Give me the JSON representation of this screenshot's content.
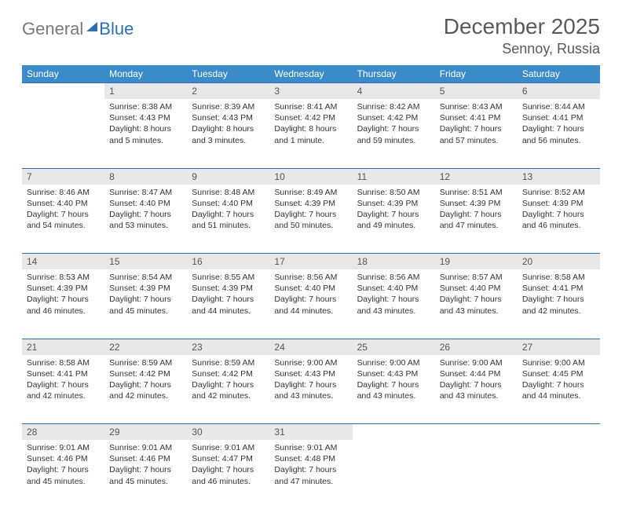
{
  "logo": {
    "text1": "General",
    "text2": "Blue"
  },
  "title": "December 2025",
  "location": "Sennoy, Russia",
  "colors": {
    "header_bg": "#3b8bc9",
    "header_text": "#ffffff",
    "daynum_bg": "#e8e8e8",
    "row_border": "#2c6fb5",
    "logo_gray": "#7a7a7a",
    "logo_blue": "#2c6fb5"
  },
  "weekdays": [
    "Sunday",
    "Monday",
    "Tuesday",
    "Wednesday",
    "Thursday",
    "Friday",
    "Saturday"
  ],
  "weeks": [
    {
      "days": [
        null,
        {
          "n": "1",
          "sr": "Sunrise: 8:38 AM",
          "ss": "Sunset: 4:43 PM",
          "dl": "Daylight: 8 hours and 5 minutes."
        },
        {
          "n": "2",
          "sr": "Sunrise: 8:39 AM",
          "ss": "Sunset: 4:43 PM",
          "dl": "Daylight: 8 hours and 3 minutes."
        },
        {
          "n": "3",
          "sr": "Sunrise: 8:41 AM",
          "ss": "Sunset: 4:42 PM",
          "dl": "Daylight: 8 hours and 1 minute."
        },
        {
          "n": "4",
          "sr": "Sunrise: 8:42 AM",
          "ss": "Sunset: 4:42 PM",
          "dl": "Daylight: 7 hours and 59 minutes."
        },
        {
          "n": "5",
          "sr": "Sunrise: 8:43 AM",
          "ss": "Sunset: 4:41 PM",
          "dl": "Daylight: 7 hours and 57 minutes."
        },
        {
          "n": "6",
          "sr": "Sunrise: 8:44 AM",
          "ss": "Sunset: 4:41 PM",
          "dl": "Daylight: 7 hours and 56 minutes."
        }
      ]
    },
    {
      "days": [
        {
          "n": "7",
          "sr": "Sunrise: 8:46 AM",
          "ss": "Sunset: 4:40 PM",
          "dl": "Daylight: 7 hours and 54 minutes."
        },
        {
          "n": "8",
          "sr": "Sunrise: 8:47 AM",
          "ss": "Sunset: 4:40 PM",
          "dl": "Daylight: 7 hours and 53 minutes."
        },
        {
          "n": "9",
          "sr": "Sunrise: 8:48 AM",
          "ss": "Sunset: 4:40 PM",
          "dl": "Daylight: 7 hours and 51 minutes."
        },
        {
          "n": "10",
          "sr": "Sunrise: 8:49 AM",
          "ss": "Sunset: 4:39 PM",
          "dl": "Daylight: 7 hours and 50 minutes."
        },
        {
          "n": "11",
          "sr": "Sunrise: 8:50 AM",
          "ss": "Sunset: 4:39 PM",
          "dl": "Daylight: 7 hours and 49 minutes."
        },
        {
          "n": "12",
          "sr": "Sunrise: 8:51 AM",
          "ss": "Sunset: 4:39 PM",
          "dl": "Daylight: 7 hours and 47 minutes."
        },
        {
          "n": "13",
          "sr": "Sunrise: 8:52 AM",
          "ss": "Sunset: 4:39 PM",
          "dl": "Daylight: 7 hours and 46 minutes."
        }
      ]
    },
    {
      "days": [
        {
          "n": "14",
          "sr": "Sunrise: 8:53 AM",
          "ss": "Sunset: 4:39 PM",
          "dl": "Daylight: 7 hours and 46 minutes."
        },
        {
          "n": "15",
          "sr": "Sunrise: 8:54 AM",
          "ss": "Sunset: 4:39 PM",
          "dl": "Daylight: 7 hours and 45 minutes."
        },
        {
          "n": "16",
          "sr": "Sunrise: 8:55 AM",
          "ss": "Sunset: 4:39 PM",
          "dl": "Daylight: 7 hours and 44 minutes."
        },
        {
          "n": "17",
          "sr": "Sunrise: 8:56 AM",
          "ss": "Sunset: 4:40 PM",
          "dl": "Daylight: 7 hours and 44 minutes."
        },
        {
          "n": "18",
          "sr": "Sunrise: 8:56 AM",
          "ss": "Sunset: 4:40 PM",
          "dl": "Daylight: 7 hours and 43 minutes."
        },
        {
          "n": "19",
          "sr": "Sunrise: 8:57 AM",
          "ss": "Sunset: 4:40 PM",
          "dl": "Daylight: 7 hours and 43 minutes."
        },
        {
          "n": "20",
          "sr": "Sunrise: 8:58 AM",
          "ss": "Sunset: 4:41 PM",
          "dl": "Daylight: 7 hours and 42 minutes."
        }
      ]
    },
    {
      "days": [
        {
          "n": "21",
          "sr": "Sunrise: 8:58 AM",
          "ss": "Sunset: 4:41 PM",
          "dl": "Daylight: 7 hours and 42 minutes."
        },
        {
          "n": "22",
          "sr": "Sunrise: 8:59 AM",
          "ss": "Sunset: 4:42 PM",
          "dl": "Daylight: 7 hours and 42 minutes."
        },
        {
          "n": "23",
          "sr": "Sunrise: 8:59 AM",
          "ss": "Sunset: 4:42 PM",
          "dl": "Daylight: 7 hours and 42 minutes."
        },
        {
          "n": "24",
          "sr": "Sunrise: 9:00 AM",
          "ss": "Sunset: 4:43 PM",
          "dl": "Daylight: 7 hours and 43 minutes."
        },
        {
          "n": "25",
          "sr": "Sunrise: 9:00 AM",
          "ss": "Sunset: 4:43 PM",
          "dl": "Daylight: 7 hours and 43 minutes."
        },
        {
          "n": "26",
          "sr": "Sunrise: 9:00 AM",
          "ss": "Sunset: 4:44 PM",
          "dl": "Daylight: 7 hours and 43 minutes."
        },
        {
          "n": "27",
          "sr": "Sunrise: 9:00 AM",
          "ss": "Sunset: 4:45 PM",
          "dl": "Daylight: 7 hours and 44 minutes."
        }
      ]
    },
    {
      "days": [
        {
          "n": "28",
          "sr": "Sunrise: 9:01 AM",
          "ss": "Sunset: 4:46 PM",
          "dl": "Daylight: 7 hours and 45 minutes."
        },
        {
          "n": "29",
          "sr": "Sunrise: 9:01 AM",
          "ss": "Sunset: 4:46 PM",
          "dl": "Daylight: 7 hours and 45 minutes."
        },
        {
          "n": "30",
          "sr": "Sunrise: 9:01 AM",
          "ss": "Sunset: 4:47 PM",
          "dl": "Daylight: 7 hours and 46 minutes."
        },
        {
          "n": "31",
          "sr": "Sunrise: 9:01 AM",
          "ss": "Sunset: 4:48 PM",
          "dl": "Daylight: 7 hours and 47 minutes."
        },
        null,
        null,
        null
      ]
    }
  ]
}
